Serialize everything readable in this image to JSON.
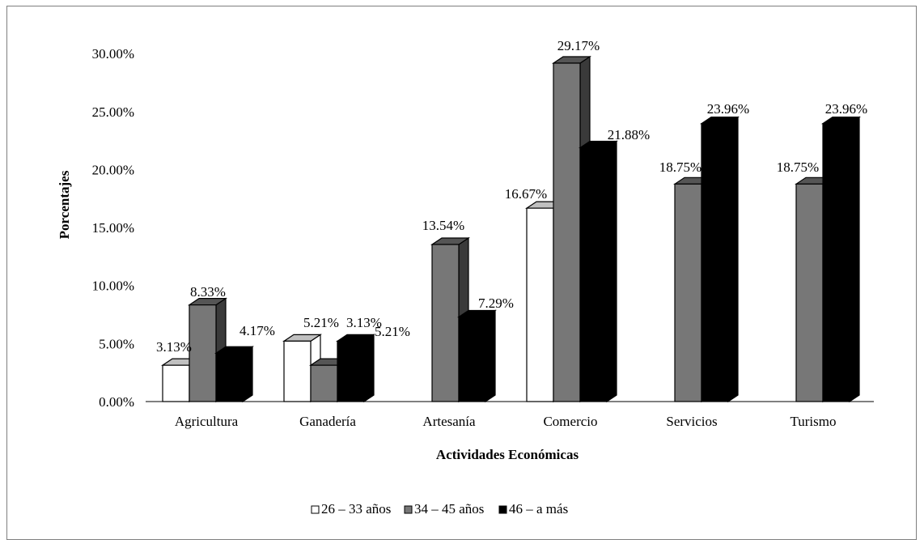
{
  "chart_data": {
    "type": "bar",
    "style": "3d-clustered-column",
    "categories": [
      "Agricultura",
      "Ganadería",
      "Artesanía",
      "Comercio",
      "Servicios",
      "Turismo"
    ],
    "series": [
      {
        "name": "26 – 33 años",
        "values": [
          3.13,
          5.21,
          0,
          16.67,
          0,
          0
        ],
        "labels": [
          "3.13%",
          "5.21%",
          "",
          "16.67%",
          "",
          ""
        ],
        "color": "#ffffff",
        "top_color": "#c0c0c0",
        "side_color": "#ffffff"
      },
      {
        "name": "34 – 45 años",
        "values": [
          8.33,
          3.13,
          13.54,
          29.17,
          18.75,
          18.75
        ],
        "labels": [
          "8.33%",
          "3.13%",
          "13.54%",
          "29.17%",
          "18.75%",
          "18.75%"
        ],
        "color": "#777777",
        "top_color": "#555555",
        "side_color": "#3a3a3a"
      },
      {
        "name": "46 – a más",
        "values": [
          4.17,
          5.21,
          7.29,
          21.88,
          23.96,
          23.96
        ],
        "labels": [
          "4.17%",
          "5.21%",
          "7.29%",
          "21.88%",
          "23.96%",
          "23.96%"
        ],
        "color": "#000000",
        "top_color": "#000000",
        "side_color": "#000000"
      }
    ],
    "xlabel": "Actividades Económicas",
    "ylabel": "Porcentajes",
    "ylim": [
      0,
      30
    ],
    "yticks": [
      "0.00%",
      "5.00%",
      "10.00%",
      "15.00%",
      "20.00%",
      "25.00%",
      "30.00%"
    ],
    "grid": false,
    "legend": "bottom-center",
    "stroke_color": "#000000"
  }
}
